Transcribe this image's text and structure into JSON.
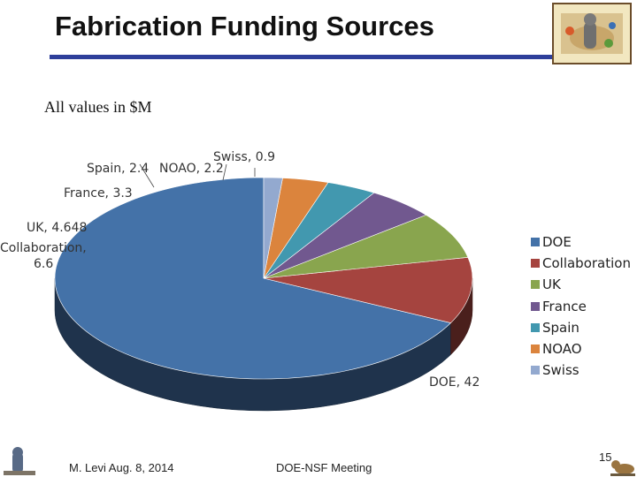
{
  "slide": {
    "title": "Fabrication Funding Sources",
    "subtitle": "All values in $M",
    "footer_author": "M. Levi  Aug. 8, 2014",
    "footer_meeting": "DOE-NSF Meeting",
    "page_number": "15"
  },
  "colors": {
    "title_rule": "#2e3f9a",
    "DOE": "#4472a8",
    "Collaboration": "#a5443f",
    "UK": "#89a54e",
    "France": "#71588f",
    "Spain": "#4298af",
    "NOAO": "#db843d",
    "Swiss": "#93a9cf"
  },
  "chart_data": {
    "type": "pie",
    "style": "3d",
    "units": "$M",
    "categories": [
      "DOE",
      "Collaboration",
      "UK",
      "France",
      "Spain",
      "NOAO",
      "Swiss"
    ],
    "values": [
      42,
      6.6,
      4.648,
      3.3,
      2.4,
      2.2,
      0.9
    ],
    "data_labels": [
      "DOE, 42",
      "Collaboration, 6.6",
      "UK, 4.648",
      "France, 3.3",
      "Spain, 2.4",
      "NOAO, 2.2",
      "Swiss, 0.9"
    ],
    "legend": [
      "DOE",
      "Collaboration",
      "UK",
      "France",
      "Spain",
      "NOAO",
      "Swiss"
    ],
    "legend_position": "right"
  }
}
